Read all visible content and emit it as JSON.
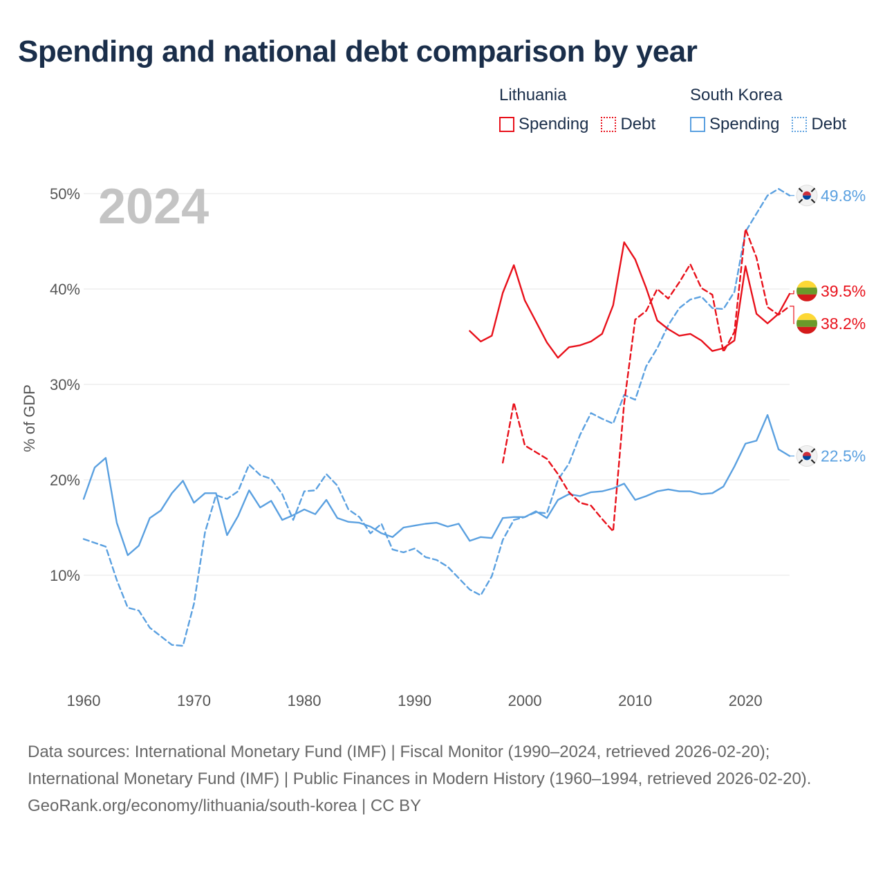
{
  "title": "Spending and national debt comparison by year",
  "legend": {
    "groups": [
      {
        "name": "Lithuania",
        "color": "#e8101a",
        "items": [
          {
            "label": "Spending",
            "style": "solid"
          },
          {
            "label": "Debt",
            "style": "dotted"
          }
        ]
      },
      {
        "name": "South Korea",
        "color": "#5aa0e0",
        "items": [
          {
            "label": "Spending",
            "style": "solid"
          },
          {
            "label": "Debt",
            "style": "dotted"
          }
        ]
      }
    ]
  },
  "year_label": "2024",
  "end_labels": [
    {
      "country": "South Korea",
      "series": "Debt",
      "text": "49.8%",
      "flag": "south-korea-flag-icon"
    },
    {
      "country": "Lithuania",
      "series": "Spending",
      "text": "39.5%",
      "flag": "lithuania-flag-icon"
    },
    {
      "country": "Lithuania",
      "series": "Debt",
      "text": "38.2%",
      "flag": "lithuania-flag-icon"
    },
    {
      "country": "South Korea",
      "series": "Spending",
      "text": "22.5%",
      "flag": "south-korea-flag-icon"
    }
  ],
  "footer": {
    "sources": "Data sources: International Monetary Fund (IMF) | Fiscal Monitor (1990–2024, retrieved 2026-02-20); International Monetary Fund (IMF) | Public Finances in Modern History (1960–1994, retrieved 2026-02-20).",
    "attribution": "GeoRank.org/economy/lithuania/south-korea | CC BY"
  },
  "colors": {
    "lithuania": "#e8101a",
    "south_korea": "#5aa0e0",
    "title": "#1a2e4a",
    "year_watermark": "#c4c4c4",
    "grid": "#e6e6e6",
    "axis_text": "#555555"
  },
  "chart_data": {
    "type": "line",
    "title": "Spending and national debt comparison by year",
    "xlabel": "",
    "ylabel": "% of GDP",
    "xlim": [
      1960,
      2024
    ],
    "ylim": [
      0,
      52
    ],
    "x_ticks": [
      1960,
      1970,
      1980,
      1990,
      2000,
      2010,
      2020
    ],
    "y_ticks": [
      10,
      20,
      30,
      40,
      50
    ],
    "y_tick_labels": [
      "10%",
      "20%",
      "30%",
      "40%",
      "50%"
    ],
    "grid": true,
    "legend_position": "top-right",
    "series": [
      {
        "name": "South Korea Spending",
        "country": "South Korea",
        "measure": "Spending",
        "color": "#5aa0e0",
        "style": "solid",
        "x": [
          1960,
          1961,
          1962,
          1963,
          1964,
          1965,
          1966,
          1967,
          1968,
          1969,
          1970,
          1971,
          1972,
          1973,
          1974,
          1975,
          1976,
          1977,
          1978,
          1979,
          1980,
          1981,
          1982,
          1983,
          1984,
          1985,
          1986,
          1987,
          1988,
          1989,
          1990,
          1991,
          1992,
          1993,
          1994,
          1995,
          1996,
          1997,
          1998,
          1999,
          2000,
          2001,
          2002,
          2003,
          2004,
          2005,
          2006,
          2007,
          2008,
          2009,
          2010,
          2011,
          2012,
          2013,
          2014,
          2015,
          2016,
          2017,
          2018,
          2019,
          2020,
          2021,
          2022,
          2023,
          2024
        ],
        "values": [
          18.0,
          21.3,
          22.3,
          15.5,
          12.1,
          13.1,
          16.0,
          16.8,
          18.6,
          19.9,
          17.6,
          18.6,
          18.6,
          14.2,
          16.2,
          18.9,
          17.1,
          17.8,
          15.8,
          16.3,
          16.9,
          16.4,
          17.9,
          16.0,
          15.6,
          15.5,
          15.1,
          14.4,
          14.0,
          15.0,
          15.2,
          15.4,
          15.5,
          15.1,
          15.4,
          13.6,
          14.0,
          13.9,
          16.0,
          16.1,
          16.1,
          16.7,
          16.0,
          17.9,
          18.5,
          18.3,
          18.7,
          18.8,
          19.1,
          19.6,
          17.9,
          18.3,
          18.8,
          19.0,
          18.8,
          18.8,
          18.5,
          18.6,
          19.3,
          21.4,
          23.8,
          24.1,
          26.8,
          23.2,
          22.5
        ]
      },
      {
        "name": "South Korea Debt",
        "country": "South Korea",
        "measure": "Debt",
        "color": "#5aa0e0",
        "style": "dashed",
        "x": [
          1960,
          1961,
          1962,
          1963,
          1964,
          1965,
          1966,
          1967,
          1968,
          1969,
          1970,
          1971,
          1972,
          1973,
          1974,
          1975,
          1976,
          1977,
          1978,
          1979,
          1980,
          1981,
          1982,
          1983,
          1984,
          1985,
          1986,
          1987,
          1988,
          1989,
          1990,
          1991,
          1992,
          1993,
          1994,
          1995,
          1996,
          1997,
          1998,
          1999,
          2000,
          2001,
          2002,
          2003,
          2004,
          2005,
          2006,
          2007,
          2008,
          2009,
          2010,
          2011,
          2012,
          2013,
          2014,
          2015,
          2016,
          2017,
          2018,
          2019,
          2020,
          2021,
          2022,
          2023,
          2024
        ],
        "values": [
          13.8,
          13.4,
          13.0,
          9.5,
          6.6,
          6.3,
          4.5,
          3.6,
          2.7,
          2.6,
          7.0,
          14.5,
          18.4,
          18.0,
          18.8,
          21.6,
          20.5,
          20.1,
          18.5,
          15.8,
          18.8,
          18.9,
          20.6,
          19.4,
          16.9,
          16.1,
          14.4,
          15.4,
          12.7,
          12.4,
          12.8,
          11.9,
          11.6,
          10.9,
          9.7,
          8.5,
          7.9,
          9.9,
          13.7,
          15.8,
          16.1,
          16.6,
          16.5,
          20.0,
          21.7,
          24.7,
          27.0,
          26.4,
          25.9,
          28.9,
          28.4,
          31.9,
          33.8,
          36.2,
          38.0,
          38.9,
          39.2,
          38.0,
          37.9,
          39.7,
          46.0,
          47.9,
          49.8,
          50.5,
          49.8
        ]
      },
      {
        "name": "Lithuania Spending",
        "country": "Lithuania",
        "measure": "Spending",
        "color": "#e8101a",
        "style": "solid",
        "x": [
          1995,
          1996,
          1997,
          1998,
          1999,
          2000,
          2001,
          2002,
          2003,
          2004,
          2005,
          2006,
          2007,
          2008,
          2009,
          2010,
          2011,
          2012,
          2013,
          2014,
          2015,
          2016,
          2017,
          2018,
          2019,
          2020,
          2021,
          2022,
          2023,
          2024
        ],
        "values": [
          35.6,
          34.5,
          35.1,
          39.6,
          42.5,
          38.8,
          36.6,
          34.4,
          32.8,
          33.9,
          34.1,
          34.5,
          35.3,
          38.3,
          44.9,
          43.1,
          40.1,
          36.7,
          35.8,
          35.1,
          35.3,
          34.6,
          33.5,
          33.8,
          34.6,
          42.4,
          37.4,
          36.4,
          37.4,
          39.5
        ]
      },
      {
        "name": "Lithuania Debt",
        "country": "Lithuania",
        "measure": "Debt",
        "color": "#e8101a",
        "style": "dashed",
        "x": [
          1998,
          1999,
          2000,
          2001,
          2002,
          2003,
          2004,
          2005,
          2006,
          2007,
          2008,
          2009,
          2010,
          2011,
          2012,
          2013,
          2014,
          2015,
          2016,
          2017,
          2018,
          2019,
          2020,
          2021,
          2022,
          2023,
          2024
        ],
        "values": [
          21.8,
          28.1,
          23.6,
          22.9,
          22.2,
          20.6,
          18.7,
          17.6,
          17.3,
          15.9,
          14.6,
          28.0,
          36.8,
          37.7,
          40.0,
          39.0,
          40.7,
          42.6,
          40.1,
          39.4,
          33.4,
          35.5,
          46.3,
          43.3,
          38.1,
          37.3,
          38.2
        ]
      }
    ]
  }
}
